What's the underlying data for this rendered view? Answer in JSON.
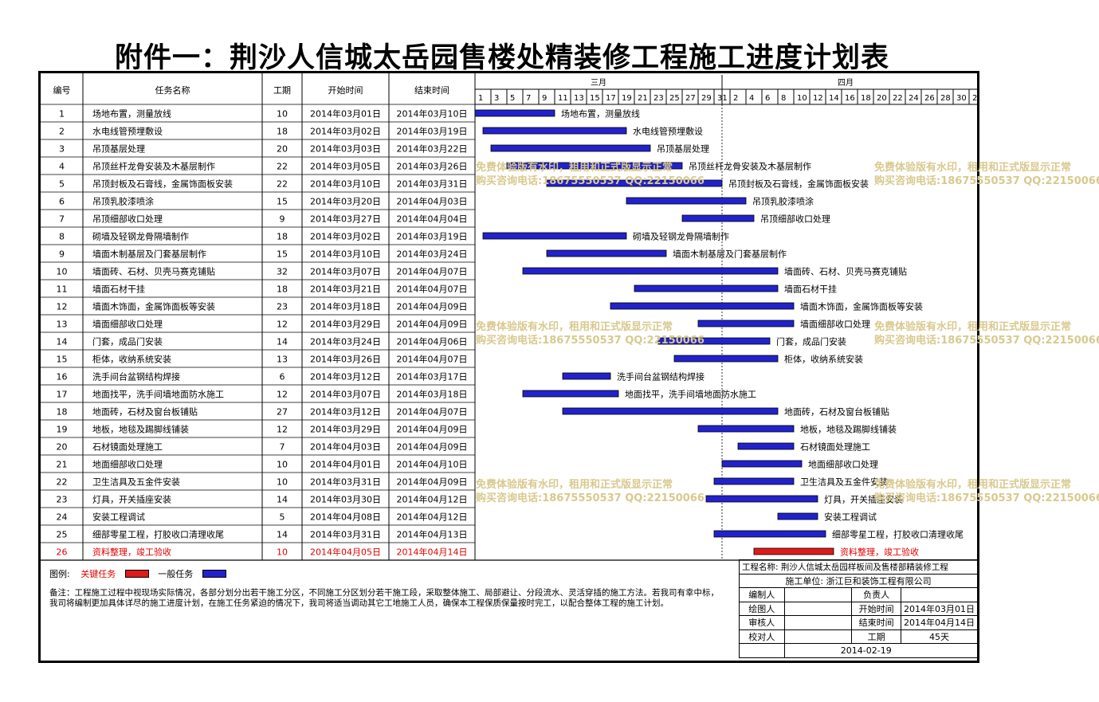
{
  "title": "附件一：荆沙人信城太岳园售楼处精装修工程施工进度计划表",
  "table_headers": {
    "no": "编号",
    "name": "任务名称",
    "dur": "工期",
    "start": "开始时间",
    "end": "结束时间"
  },
  "months": [
    {
      "label": "三月",
      "start": "2014-03-01"
    },
    {
      "label": "四月",
      "start": "2014-04-01"
    }
  ],
  "day_ticks": [
    "1",
    "3",
    "5",
    "7",
    "9",
    "11",
    "13",
    "15",
    "17",
    "19",
    "21",
    "23",
    "25",
    "27",
    "29",
    "31",
    "2",
    "4",
    "6",
    "8",
    "10",
    "12",
    "14",
    "16",
    "18",
    "20",
    "22",
    "24",
    "26",
    "28",
    "30",
    "2"
  ],
  "colors": {
    "critical": "#e01a1a",
    "normal": "#2222cc",
    "critical_text": "#e00000",
    "watermark": "#d8c98e"
  },
  "tasks": [
    {
      "no": "1",
      "name": "场地布置，测量放线",
      "dur": "10",
      "start": "2014年03月01日",
      "end": "2014年03月10日",
      "s": "2014-03-01",
      "e": "2014-03-10",
      "critical": false
    },
    {
      "no": "2",
      "name": "水电线管预埋敷设",
      "dur": "18",
      "start": "2014年03月02日",
      "end": "2014年03月19日",
      "s": "2014-03-02",
      "e": "2014-03-19",
      "critical": false
    },
    {
      "no": "3",
      "name": "吊顶基层处理",
      "dur": "20",
      "start": "2014年03月03日",
      "end": "2014年03月22日",
      "s": "2014-03-03",
      "e": "2014-03-22",
      "critical": false
    },
    {
      "no": "4",
      "name": "吊顶丝杆龙骨安装及木基层制作",
      "dur": "22",
      "start": "2014年03月05日",
      "end": "2014年03月26日",
      "s": "2014-03-05",
      "e": "2014-03-26",
      "critical": false
    },
    {
      "no": "5",
      "name": "吊顶封板及石膏线，金属饰面板安装",
      "dur": "22",
      "start": "2014年03月10日",
      "end": "2014年03月31日",
      "s": "2014-03-10",
      "e": "2014-03-31",
      "critical": false
    },
    {
      "no": "6",
      "name": "吊顶乳胶漆喷涂",
      "dur": "15",
      "start": "2014年03月20日",
      "end": "2014年04月03日",
      "s": "2014-03-20",
      "e": "2014-04-03",
      "critical": false
    },
    {
      "no": "7",
      "name": "吊顶细部收口处理",
      "dur": "9",
      "start": "2014年03月27日",
      "end": "2014年04月04日",
      "s": "2014-03-27",
      "e": "2014-04-04",
      "critical": false
    },
    {
      "no": "8",
      "name": "砌墙及轻钢龙骨隔墙制作",
      "dur": "18",
      "start": "2014年03月02日",
      "end": "2014年03月19日",
      "s": "2014-03-02",
      "e": "2014-03-19",
      "critical": false
    },
    {
      "no": "9",
      "name": "墙面木制基层及门套基层制作",
      "dur": "15",
      "start": "2014年03月10日",
      "end": "2014年03月24日",
      "s": "2014-03-10",
      "e": "2014-03-24",
      "critical": false
    },
    {
      "no": "10",
      "name": "墙面砖、石材、贝壳马赛克铺贴",
      "dur": "32",
      "start": "2014年03月07日",
      "end": "2014年04月07日",
      "s": "2014-03-07",
      "e": "2014-04-07",
      "critical": false
    },
    {
      "no": "11",
      "name": "墙面石材干挂",
      "dur": "18",
      "start": "2014年03月21日",
      "end": "2014年04月07日",
      "s": "2014-03-21",
      "e": "2014-04-07",
      "critical": false
    },
    {
      "no": "12",
      "name": "墙面木饰面，金属饰面板等安装",
      "dur": "23",
      "start": "2014年03月18日",
      "end": "2014年04月09日",
      "s": "2014-03-18",
      "e": "2014-04-09",
      "critical": false
    },
    {
      "no": "13",
      "name": "墙面细部收口处理",
      "dur": "12",
      "start": "2014年03月29日",
      "end": "2014年04月09日",
      "s": "2014-03-29",
      "e": "2014-04-09",
      "critical": false
    },
    {
      "no": "14",
      "name": "门套，成品门安装",
      "dur": "14",
      "start": "2014年03月24日",
      "end": "2014年04月06日",
      "s": "2014-03-24",
      "e": "2014-04-06",
      "critical": false
    },
    {
      "no": "15",
      "name": "柜体，收纳系统安装",
      "dur": "13",
      "start": "2014年03月26日",
      "end": "2014年04月07日",
      "s": "2014-03-26",
      "e": "2014-04-07",
      "critical": false
    },
    {
      "no": "16",
      "name": "洗手间台盆钢结构焊接",
      "dur": "6",
      "start": "2014年03月12日",
      "end": "2014年03月17日",
      "s": "2014-03-12",
      "e": "2014-03-17",
      "critical": false
    },
    {
      "no": "17",
      "name": "地面找平，洗手间墙地面防水施工",
      "dur": "12",
      "start": "2014年03月07日",
      "end": "2014年03月18日",
      "s": "2014-03-07",
      "e": "2014-03-18",
      "critical": false
    },
    {
      "no": "18",
      "name": "地面砖，石材及窗台板铺贴",
      "dur": "27",
      "start": "2014年03月12日",
      "end": "2014年04月07日",
      "s": "2014-03-12",
      "e": "2014-04-07",
      "critical": false
    },
    {
      "no": "19",
      "name": "地板，地毯及踢脚线铺装",
      "dur": "12",
      "start": "2014年03月29日",
      "end": "2014年04月09日",
      "s": "2014-03-29",
      "e": "2014-04-09",
      "critical": false
    },
    {
      "no": "20",
      "name": "石材镜面处理施工",
      "dur": "7",
      "start": "2014年04月03日",
      "end": "2014年04月09日",
      "s": "2014-04-03",
      "e": "2014-04-09",
      "critical": false
    },
    {
      "no": "21",
      "name": "地面细部收口处理",
      "dur": "10",
      "start": "2014年04月01日",
      "end": "2014年04月10日",
      "s": "2014-04-01",
      "e": "2014-04-10",
      "critical": false
    },
    {
      "no": "22",
      "name": "卫生洁具及五金件安装",
      "dur": "10",
      "start": "2014年03月31日",
      "end": "2014年04月09日",
      "s": "2014-03-31",
      "e": "2014-04-09",
      "critical": false
    },
    {
      "no": "23",
      "name": "灯具，开关插座安装",
      "dur": "14",
      "start": "2014年03月30日",
      "end": "2014年04月12日",
      "s": "2014-03-30",
      "e": "2014-04-12",
      "critical": false
    },
    {
      "no": "24",
      "name": "安装工程调试",
      "dur": "5",
      "start": "2014年04月08日",
      "end": "2014年04月12日",
      "s": "2014-04-08",
      "e": "2014-04-12",
      "critical": false
    },
    {
      "no": "25",
      "name": "细部零星工程，打胶收口清理收尾",
      "dur": "14",
      "start": "2014年03月31日",
      "end": "2014年04月13日",
      "s": "2014-03-31",
      "e": "2014-04-13",
      "critical": false
    },
    {
      "no": "26",
      "name": "资料整理，竣工验收",
      "dur": "10",
      "start": "2014年04月05日",
      "end": "2014年04月14日",
      "s": "2014-04-05",
      "e": "2014-04-14",
      "critical": true
    }
  ],
  "chart_data": {
    "type": "gantt",
    "axis_start": "2014-03-01",
    "axis_end": "2014-04-31",
    "legend": [
      {
        "name": "关键任务",
        "color": "#e01a1a"
      },
      {
        "name": "一般任务",
        "color": "#2222cc"
      }
    ]
  },
  "legend": {
    "label": "图例:",
    "critical": "关键任务",
    "normal": "一般任务"
  },
  "note": "备注：工程施工过程中视现场实际情况，各部分划分出若干施工分区，不同施工分区划分若干施工段，采取整体施工、局部避让、分段流水、灵活穿插的施工方法。若我司有幸中标，我司将编制更加具体详尽的施工进度计划，在施工任务紧迫的情况下，我司将适当调动其它工地施工人员，确保本工程保质保量按时完工，以配合整体工程的施工计划。",
  "info": {
    "project_label": "工程名称:",
    "project": "荆沙人信城太岳园样板间及售楼部精装修工程",
    "company_label": "施工单位:",
    "company": "浙江巨和装饰工程有限公司",
    "editor": "编制人",
    "owner": "负责人",
    "drawer": "绘图人",
    "start_label": "开始时间",
    "start": "2014年03月01日",
    "reviewer": "审核人",
    "end_label": "结束时间",
    "end": "2014年04月14日",
    "checker": "校对人",
    "dur_label": "工期",
    "dur": "45天",
    "date": "2014-02-19"
  },
  "watermark": {
    "line1": "免费体验版有水印，租用和正式版显示正常",
    "line2": "购买咨询电话:18675550537 QQ:22150066"
  }
}
